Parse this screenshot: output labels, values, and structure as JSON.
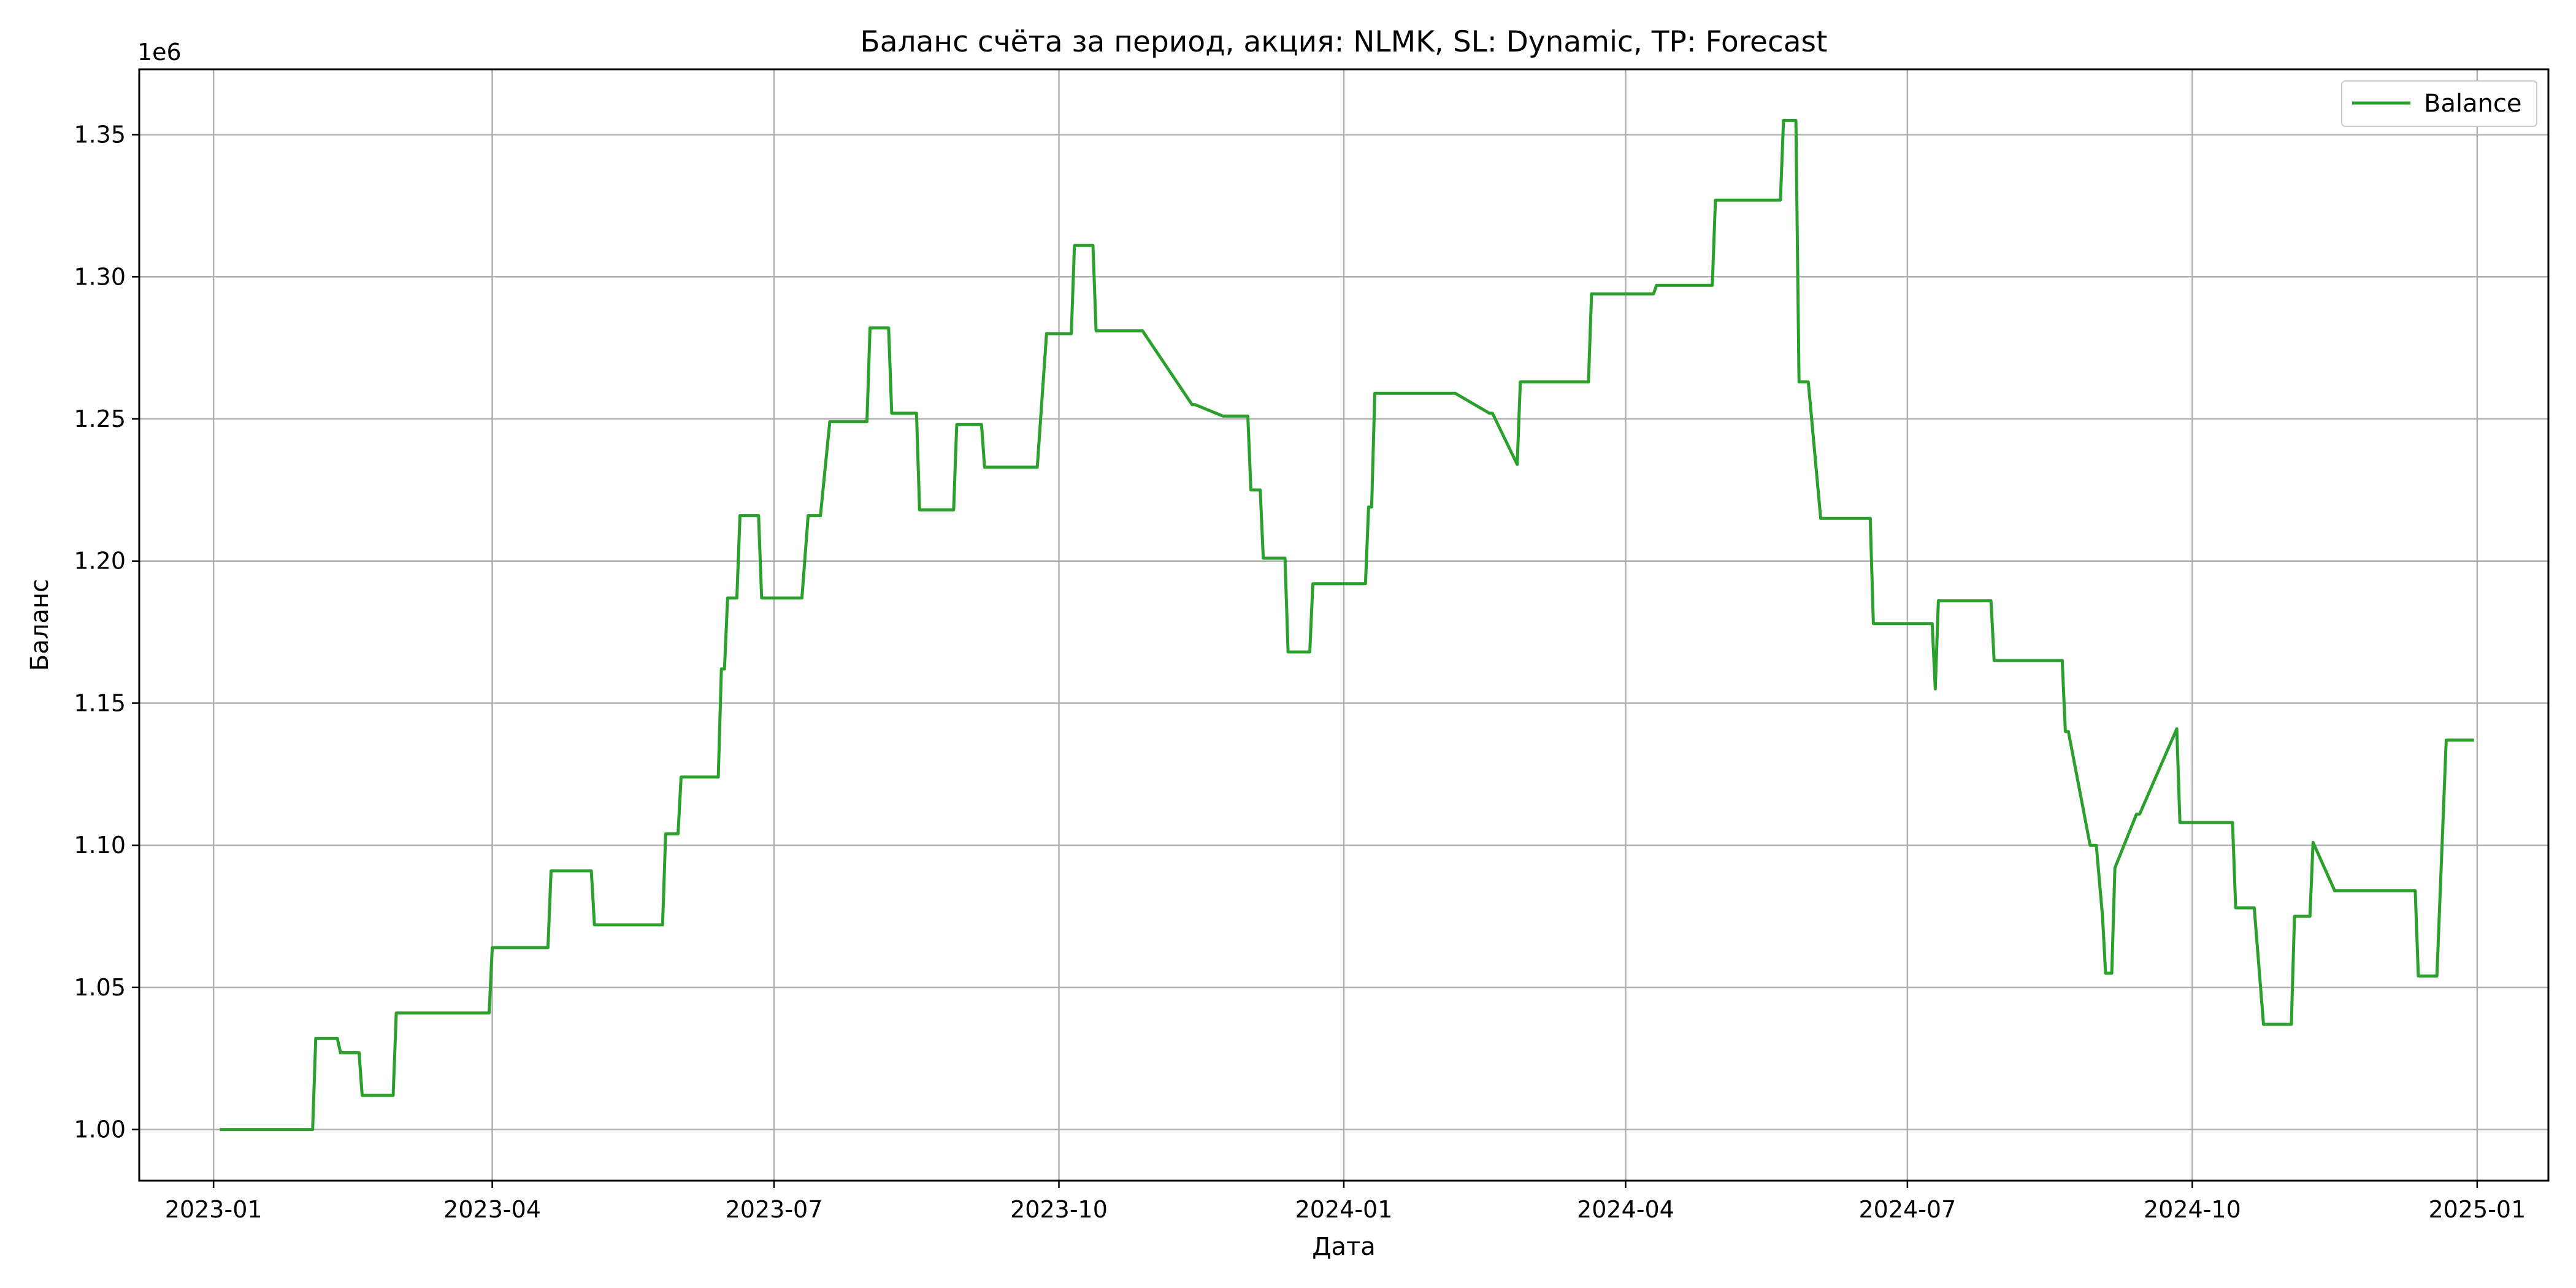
{
  "chart_data": {
    "type": "line",
    "title": "Баланс счёта за период, акция: NLMK, SL: Dynamic, TP: Forecast",
    "xlabel": "Дата",
    "ylabel": "Баланс",
    "y_offset_label": "1e6",
    "x_ticks": [
      "2023-01",
      "2023-04",
      "2023-07",
      "2023-10",
      "2024-01",
      "2024-04",
      "2024-07",
      "2024-10",
      "2025-01"
    ],
    "x_tick_dates": [
      "2023-01-01",
      "2023-04-01",
      "2023-07-01",
      "2023-10-01",
      "2024-01-01",
      "2024-04-01",
      "2024-07-01",
      "2024-10-01",
      "2025-01-01"
    ],
    "y_ticks": [
      "1.00",
      "1.05",
      "1.10",
      "1.15",
      "1.20",
      "1.25",
      "1.30",
      "1.35"
    ],
    "y_tick_values": [
      1.0,
      1.05,
      1.1,
      1.15,
      1.2,
      1.25,
      1.3,
      1.35
    ],
    "xlim": [
      "2022-12-08",
      "2025-01-24"
    ],
    "ylim": [
      0.982,
      1.373
    ],
    "y_unit": "1e6",
    "grid": true,
    "legend_position": "top-right",
    "series": [
      {
        "name": "Balance",
        "color": "#2ca02c",
        "x": [
          "2023-01-03",
          "2023-02-02",
          "2023-02-03",
          "2023-02-10",
          "2023-02-11",
          "2023-02-17",
          "2023-02-18",
          "2023-02-28",
          "2023-03-01",
          "2023-03-31",
          "2023-04-01",
          "2023-04-19",
          "2023-04-20",
          "2023-05-03",
          "2023-05-04",
          "2023-05-26",
          "2023-05-27",
          "2023-05-31",
          "2023-06-01",
          "2023-06-13",
          "2023-06-14",
          "2023-06-15",
          "2023-06-16",
          "2023-06-19",
          "2023-06-20",
          "2023-06-26",
          "2023-06-27",
          "2023-07-06",
          "2023-07-07",
          "2023-07-10",
          "2023-07-12",
          "2023-07-15",
          "2023-07-16",
          "2023-07-19",
          "2023-07-20",
          "2023-07-31",
          "2023-08-01",
          "2023-08-07",
          "2023-08-08",
          "2023-08-16",
          "2023-08-17",
          "2023-08-28",
          "2023-08-29",
          "2023-09-06",
          "2023-09-07",
          "2023-09-24",
          "2023-09-27",
          "2023-10-05",
          "2023-10-06",
          "2023-10-12",
          "2023-10-13",
          "2023-10-27",
          "2023-10-28",
          "2023-11-13",
          "2023-11-14",
          "2023-11-23",
          "2023-12-01",
          "2023-12-02",
          "2023-12-05",
          "2023-12-06",
          "2023-12-13",
          "2023-12-14",
          "2023-12-21",
          "2023-12-22",
          "2024-01-08",
          "2024-01-09",
          "2024-01-10",
          "2024-01-11",
          "2024-02-05",
          "2024-02-06",
          "2024-02-17",
          "2024-02-18",
          "2024-02-26",
          "2024-02-27",
          "2024-03-20",
          "2024-03-21",
          "2024-04-10",
          "2024-04-11",
          "2024-04-29",
          "2024-04-30",
          "2024-05-21",
          "2024-05-22",
          "2024-05-26",
          "2024-05-27",
          "2024-05-30",
          "2024-06-03",
          "2024-06-19",
          "2024-06-20",
          "2024-07-09",
          "2024-07-10",
          "2024-07-11",
          "2024-07-28",
          "2024-07-29",
          "2024-08-20",
          "2024-08-21",
          "2024-08-22",
          "2024-08-29",
          "2024-08-31",
          "2024-09-02",
          "2024-09-03",
          "2024-09-05",
          "2024-09-06",
          "2024-09-13",
          "2024-09-14",
          "2024-09-26",
          "2024-09-27",
          "2024-10-14",
          "2024-10-15",
          "2024-10-21",
          "2024-10-24",
          "2024-11-02",
          "2024-11-03",
          "2024-11-08",
          "2024-11-09",
          "2024-11-16",
          "2024-11-17",
          "2024-12-12",
          "2024-12-13",
          "2024-12-19",
          "2024-12-22",
          "2024-12-31"
        ],
        "values": [
          1.0,
          1.0,
          1.032,
          1.032,
          1.027,
          1.027,
          1.012,
          1.012,
          1.041,
          1.041,
          1.064,
          1.064,
          1.091,
          1.091,
          1.072,
          1.072,
          1.104,
          1.104,
          1.124,
          1.124,
          1.162,
          1.162,
          1.187,
          1.187,
          1.216,
          1.216,
          1.187,
          1.187,
          1.187,
          1.187,
          1.216,
          1.216,
          1.216,
          1.249,
          1.249,
          1.249,
          1.282,
          1.282,
          1.252,
          1.252,
          1.218,
          1.218,
          1.248,
          1.248,
          1.233,
          1.233,
          1.28,
          1.28,
          1.311,
          1.311,
          1.281,
          1.281,
          1.281,
          1.255,
          1.255,
          1.251,
          1.251,
          1.225,
          1.225,
          1.201,
          1.201,
          1.168,
          1.168,
          1.192,
          1.192,
          1.219,
          1.219,
          1.259,
          1.259,
          1.259,
          1.252,
          1.252,
          1.234,
          1.263,
          1.263,
          1.294,
          1.294,
          1.297,
          1.297,
          1.327,
          1.327,
          1.355,
          1.355,
          1.263,
          1.263,
          1.215,
          1.215,
          1.178,
          1.178,
          1.155,
          1.186,
          1.186,
          1.165,
          1.165,
          1.14,
          1.14,
          1.1,
          1.1,
          1.075,
          1.055,
          1.055,
          1.092,
          1.111,
          1.111,
          1.141,
          1.108,
          1.108,
          1.078,
          1.078,
          1.037,
          1.037,
          1.075,
          1.075,
          1.101,
          1.084,
          1.084,
          1.084,
          1.054,
          1.054,
          1.137,
          1.137
        ]
      }
    ]
  }
}
